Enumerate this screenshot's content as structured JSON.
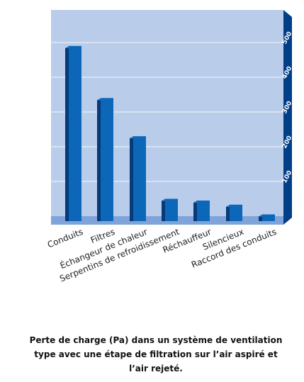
{
  "chart_data": {
    "type": "bar",
    "categories": [
      "Conduits",
      "Filtres",
      "Échangeur de chaleur",
      "Serpentins de refroidissement",
      "Réchauffeur",
      "Silencieux",
      "Raccord des conduits"
    ],
    "values": [
      490,
      340,
      230,
      50,
      45,
      33,
      5
    ],
    "ylim": [
      0,
      500
    ],
    "yticks": [
      100,
      200,
      300,
      400,
      500
    ],
    "grid": true,
    "title": "Perte de charge (Pa) dans un système de ventilation type avec une étape de filtration sur l’air aspiré et l’air rejeté.",
    "colors": {
      "background": "#b9cdeb",
      "floor": "#7fa4d9",
      "side_wall": "#003e87",
      "bar_front": "#0d67b8",
      "bar_side": "#063a78",
      "gridline": "#ffffff"
    }
  }
}
